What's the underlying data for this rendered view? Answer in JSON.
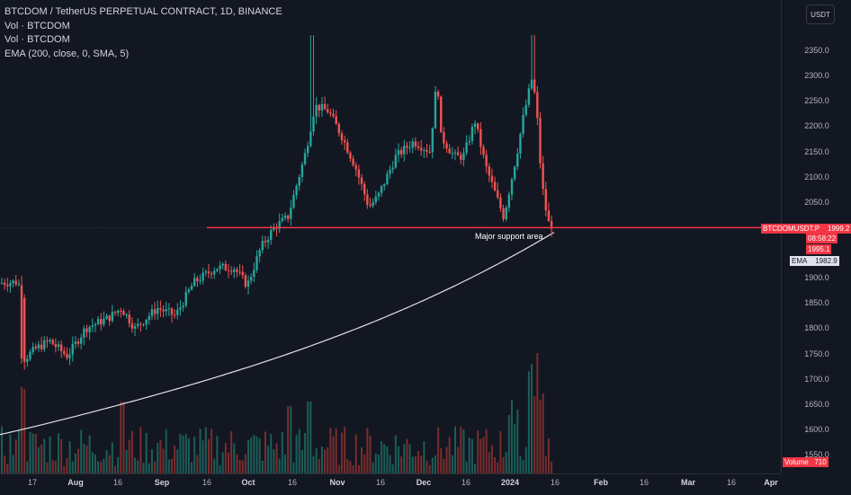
{
  "legend": {
    "title": "BTCDOM / TetherUS PERPETUAL CONTRACT, 1D, BINANCE",
    "indicators": [
      "Vol · BTCDOM",
      "Vol · BTCDOM",
      "EMA (200, close, 0, SMA, 5)"
    ]
  },
  "currency_button": "USDT",
  "annotation": "Major support area",
  "price_tags": {
    "symbol": "BTCDOMUSDT.P",
    "last_price": "1999.2",
    "countdown": "08:58:22",
    "prev_price": "1995.1",
    "ema_label": "EMA",
    "ema_value": "1982.9",
    "volume_label": "Volume",
    "volume_value": "710"
  },
  "colors": {
    "up": "#26a69a",
    "down": "#ef5350",
    "support_line": "#f23645",
    "ema": "#e0e3eb",
    "background": "#131722"
  },
  "chart_data": {
    "type": "candlestick",
    "symbol": "BTCDOMUSDT.P",
    "interval": "1D",
    "y_ticks": [
      2350,
      2300,
      2250,
      2200,
      2150,
      2100,
      2050,
      1900,
      1850,
      1800,
      1750,
      1700,
      1650,
      1600,
      1550
    ],
    "x_ticks": [
      "17",
      "Aug",
      "16",
      "Sep",
      "16",
      "Oct",
      "16",
      "Nov",
      "16",
      "Dec",
      "16",
      "2024",
      "16",
      "Feb",
      "16",
      "Mar",
      "16",
      "Apr"
    ],
    "support_level": 1999.2,
    "last_price": 1999.2,
    "ema_last": 1982.9,
    "volume_last": 710
  }
}
